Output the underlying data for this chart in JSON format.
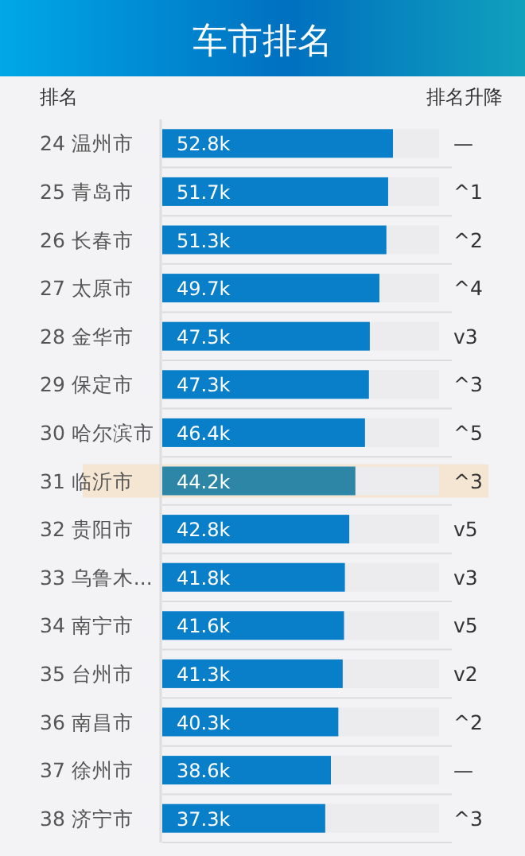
{
  "chart_data": {
    "type": "bar",
    "orientation": "horizontal",
    "title": "车市排名",
    "annotations": [
      "排名",
      "排名升降"
    ],
    "categories": [
      "24 温州市",
      "25 青岛市",
      "26 长春市",
      "27 太原市",
      "28 金华市",
      "29 保定市",
      "30 哈尔滨市",
      "31 临沂市",
      "32 贵阳市",
      "33 乌鲁木...",
      "34 南宁市",
      "35 台州市",
      "36 南昌市",
      "37 徐州市",
      "38 济宁市"
    ],
    "y2_categories": [
      "—",
      "^1",
      "^2",
      "^4",
      "v3",
      "^3",
      "^5",
      "^3",
      "v5",
      "v3",
      "v5",
      "v2",
      "^2",
      "—",
      "^3"
    ],
    "values": [
      52.8,
      51.7,
      51.3,
      49.7,
      47.5,
      47.3,
      46.4,
      44.2,
      42.8,
      41.8,
      41.6,
      41.3,
      40.3,
      38.6,
      37.3
    ],
    "value_labels": [
      "52.8k",
      "51.7k",
      "51.3k",
      "49.7k",
      "47.5k",
      "47.3k",
      "46.4k",
      "44.2k",
      "42.8k",
      "41.8k",
      "41.6k",
      "41.3k",
      "40.3k",
      "38.6k",
      "37.3k"
    ],
    "colors": [
      "#0a7fc9",
      "#0a7fc9",
      "#0a7fc9",
      "#0a7fc9",
      "#0a7fc9",
      "#0a7fc9",
      "#0a7fc9",
      "#2e86a6",
      "#0a7fc9",
      "#0a7fc9",
      "#0a7fc9",
      "#0a7fc9",
      "#0a7fc9",
      "#0a7fc9",
      "#0a7fc9"
    ],
    "bands": [
      {
        "axis": "y",
        "from": "31 临沂市",
        "to": "31 临沂市",
        "color": "#f5e6d3"
      }
    ]
  }
}
